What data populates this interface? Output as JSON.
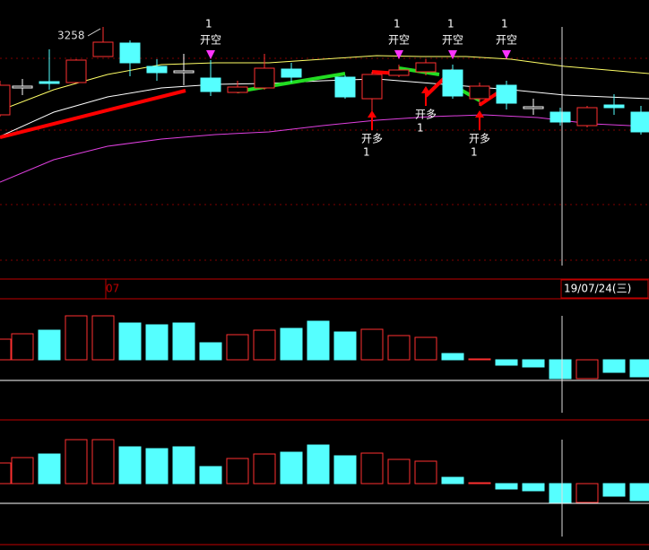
{
  "price_label": "3258",
  "signals_top": [
    {
      "label": "开空",
      "sub": "1"
    },
    {
      "label": "开空",
      "sub": "1"
    },
    {
      "label": "开空",
      "sub": "1"
    },
    {
      "label": "开空",
      "sub": "1"
    }
  ],
  "signals_bottom": [
    {
      "label": "开多",
      "sub": "1"
    },
    {
      "label": "开多",
      "sub": "1"
    },
    {
      "label": "开多",
      "sub": "1"
    }
  ],
  "axis_label": "07",
  "cursor_date": "19/07/24(三)"
}
